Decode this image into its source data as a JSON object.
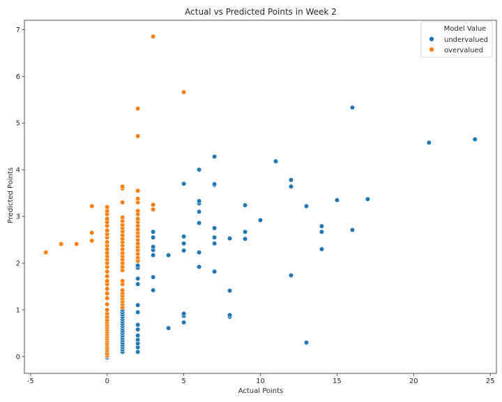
{
  "chart_data": {
    "type": "scatter",
    "title": "Actual vs Predicted Points in Week 2",
    "xlabel": "Actual Points",
    "ylabel": "Predicted Points",
    "xlim": [
      -5.4,
      25.4
    ],
    "ylim": [
      -0.36,
      7.2
    ],
    "x_ticks": [
      -5,
      0,
      5,
      10,
      15,
      20,
      25
    ],
    "y_ticks": [
      0,
      1,
      2,
      3,
      4,
      5,
      6,
      7
    ],
    "grid": false,
    "legend": {
      "title": "Model Value",
      "placement": "top-right",
      "entries": [
        "undervalued",
        "overvalued"
      ]
    },
    "series": [
      {
        "name": "undervalued",
        "color": "#1f77b4",
        "points": [
          [
            0,
            -0.02
          ],
          [
            0,
            0.01
          ],
          [
            1,
            0.1
          ],
          [
            1,
            0.15
          ],
          [
            1,
            0.2
          ],
          [
            1,
            0.25
          ],
          [
            1,
            0.3
          ],
          [
            1,
            0.35
          ],
          [
            1,
            0.4
          ],
          [
            1,
            0.45
          ],
          [
            1,
            0.5
          ],
          [
            1,
            0.55
          ],
          [
            1,
            0.6
          ],
          [
            1,
            0.65
          ],
          [
            1,
            0.7
          ],
          [
            1,
            0.75
          ],
          [
            1,
            0.8
          ],
          [
            1,
            0.85
          ],
          [
            1,
            0.9
          ],
          [
            1,
            0.95
          ],
          [
            1,
            1.0
          ],
          [
            1,
            1.05
          ],
          [
            2,
            0.1
          ],
          [
            2,
            0.2
          ],
          [
            2,
            0.28
          ],
          [
            2,
            0.36
          ],
          [
            2,
            0.45
          ],
          [
            2,
            0.58
          ],
          [
            2,
            0.68
          ],
          [
            2,
            0.95
          ],
          [
            2,
            1.1
          ],
          [
            2,
            1.55
          ],
          [
            2,
            1.67
          ],
          [
            2,
            1.9
          ],
          [
            2,
            1.95
          ],
          [
            3,
            1.42
          ],
          [
            3,
            1.7
          ],
          [
            3,
            2.17
          ],
          [
            3,
            2.28
          ],
          [
            3,
            2.35
          ],
          [
            3,
            2.55
          ],
          [
            3,
            2.67
          ],
          [
            4,
            0.61
          ],
          [
            4,
            2.17
          ],
          [
            5,
            0.73
          ],
          [
            5,
            0.87
          ],
          [
            5,
            0.92
          ],
          [
            5,
            2.27
          ],
          [
            5,
            2.42
          ],
          [
            5,
            2.57
          ],
          [
            5,
            3.7
          ],
          [
            6,
            1.92
          ],
          [
            6,
            2.23
          ],
          [
            6,
            2.86
          ],
          [
            6,
            3.1
          ],
          [
            6,
            3.28
          ],
          [
            6,
            3.33
          ],
          [
            6,
            4.0
          ],
          [
            7,
            1.82
          ],
          [
            7,
            2.42
          ],
          [
            7,
            2.55
          ],
          [
            7,
            2.75
          ],
          [
            7,
            3.67
          ],
          [
            7,
            3.69
          ],
          [
            7,
            4.28
          ],
          [
            8,
            0.85
          ],
          [
            8,
            0.89
          ],
          [
            8,
            1.41
          ],
          [
            8,
            2.53
          ],
          [
            9,
            2.52
          ],
          [
            9,
            2.67
          ],
          [
            9,
            3.24
          ],
          [
            10,
            2.92
          ],
          [
            11,
            4.18
          ],
          [
            12,
            1.74
          ],
          [
            12,
            3.64
          ],
          [
            12,
            3.78
          ],
          [
            13,
            0.3
          ],
          [
            13,
            3.22
          ],
          [
            14,
            2.3
          ],
          [
            14,
            2.67
          ],
          [
            14,
            2.79
          ],
          [
            15,
            3.35
          ],
          [
            16,
            2.71
          ],
          [
            16,
            5.33
          ],
          [
            17,
            3.37
          ],
          [
            21,
            4.58
          ],
          [
            24,
            4.65
          ]
        ]
      },
      {
        "name": "overvalued",
        "color": "#ff7f0e",
        "points": [
          [
            -4,
            2.23
          ],
          [
            -3,
            2.41
          ],
          [
            -2,
            2.41
          ],
          [
            -1,
            2.48
          ],
          [
            -1,
            2.65
          ],
          [
            -1,
            3.22
          ],
          [
            0,
            0.02
          ],
          [
            0,
            0.07
          ],
          [
            0,
            0.13
          ],
          [
            0,
            0.18
          ],
          [
            0,
            0.23
          ],
          [
            0,
            0.28
          ],
          [
            0,
            0.33
          ],
          [
            0,
            0.38
          ],
          [
            0,
            0.43
          ],
          [
            0,
            0.48
          ],
          [
            0,
            0.53
          ],
          [
            0,
            0.58
          ],
          [
            0,
            0.63
          ],
          [
            0,
            0.68
          ],
          [
            0,
            0.73
          ],
          [
            0,
            0.78
          ],
          [
            0,
            0.85
          ],
          [
            0,
            0.92
          ],
          [
            0,
            1.0
          ],
          [
            0,
            1.12
          ],
          [
            0,
            1.25
          ],
          [
            0,
            1.35
          ],
          [
            0,
            1.45
          ],
          [
            0,
            1.55
          ],
          [
            0,
            1.62
          ],
          [
            0,
            1.72
          ],
          [
            0,
            1.82
          ],
          [
            0,
            1.92
          ],
          [
            0,
            2.0
          ],
          [
            0,
            2.08
          ],
          [
            0,
            2.15
          ],
          [
            0,
            2.22
          ],
          [
            0,
            2.3
          ],
          [
            0,
            2.38
          ],
          [
            0,
            2.45
          ],
          [
            0,
            2.55
          ],
          [
            0,
            2.62
          ],
          [
            0,
            2.7
          ],
          [
            0,
            2.8
          ],
          [
            0,
            2.88
          ],
          [
            0,
            2.95
          ],
          [
            0,
            3.05
          ],
          [
            0,
            3.12
          ],
          [
            0,
            3.2
          ],
          [
            1,
            1.05
          ],
          [
            1,
            1.12
          ],
          [
            1,
            1.18
          ],
          [
            1,
            1.24
          ],
          [
            1,
            1.3
          ],
          [
            1,
            1.36
          ],
          [
            1,
            1.42
          ],
          [
            1,
            1.55
          ],
          [
            1,
            1.62
          ],
          [
            1,
            1.85
          ],
          [
            1,
            1.92
          ],
          [
            1,
            2.0
          ],
          [
            1,
            2.08
          ],
          [
            1,
            2.15
          ],
          [
            1,
            2.22
          ],
          [
            1,
            2.3
          ],
          [
            1,
            2.38
          ],
          [
            1,
            2.45
          ],
          [
            1,
            2.52
          ],
          [
            1,
            2.6
          ],
          [
            1,
            2.68
          ],
          [
            1,
            2.75
          ],
          [
            1,
            2.82
          ],
          [
            1,
            2.9
          ],
          [
            1,
            2.98
          ],
          [
            1,
            3.3
          ],
          [
            1,
            3.6
          ],
          [
            1,
            3.64
          ],
          [
            2,
            2.05
          ],
          [
            2,
            2.12
          ],
          [
            2,
            2.2
          ],
          [
            2,
            2.28
          ],
          [
            2,
            2.35
          ],
          [
            2,
            2.42
          ],
          [
            2,
            2.5
          ],
          [
            2,
            2.58
          ],
          [
            2,
            2.65
          ],
          [
            2,
            2.72
          ],
          [
            2,
            2.8
          ],
          [
            2,
            2.88
          ],
          [
            2,
            2.95
          ],
          [
            2,
            3.05
          ],
          [
            2,
            3.12
          ],
          [
            2,
            3.3
          ],
          [
            2,
            3.38
          ],
          [
            2,
            3.55
          ],
          [
            2,
            4.72
          ],
          [
            2,
            5.31
          ],
          [
            3,
            3.15
          ],
          [
            3,
            3.25
          ],
          [
            3,
            6.85
          ],
          [
            5,
            5.66
          ]
        ]
      }
    ]
  }
}
